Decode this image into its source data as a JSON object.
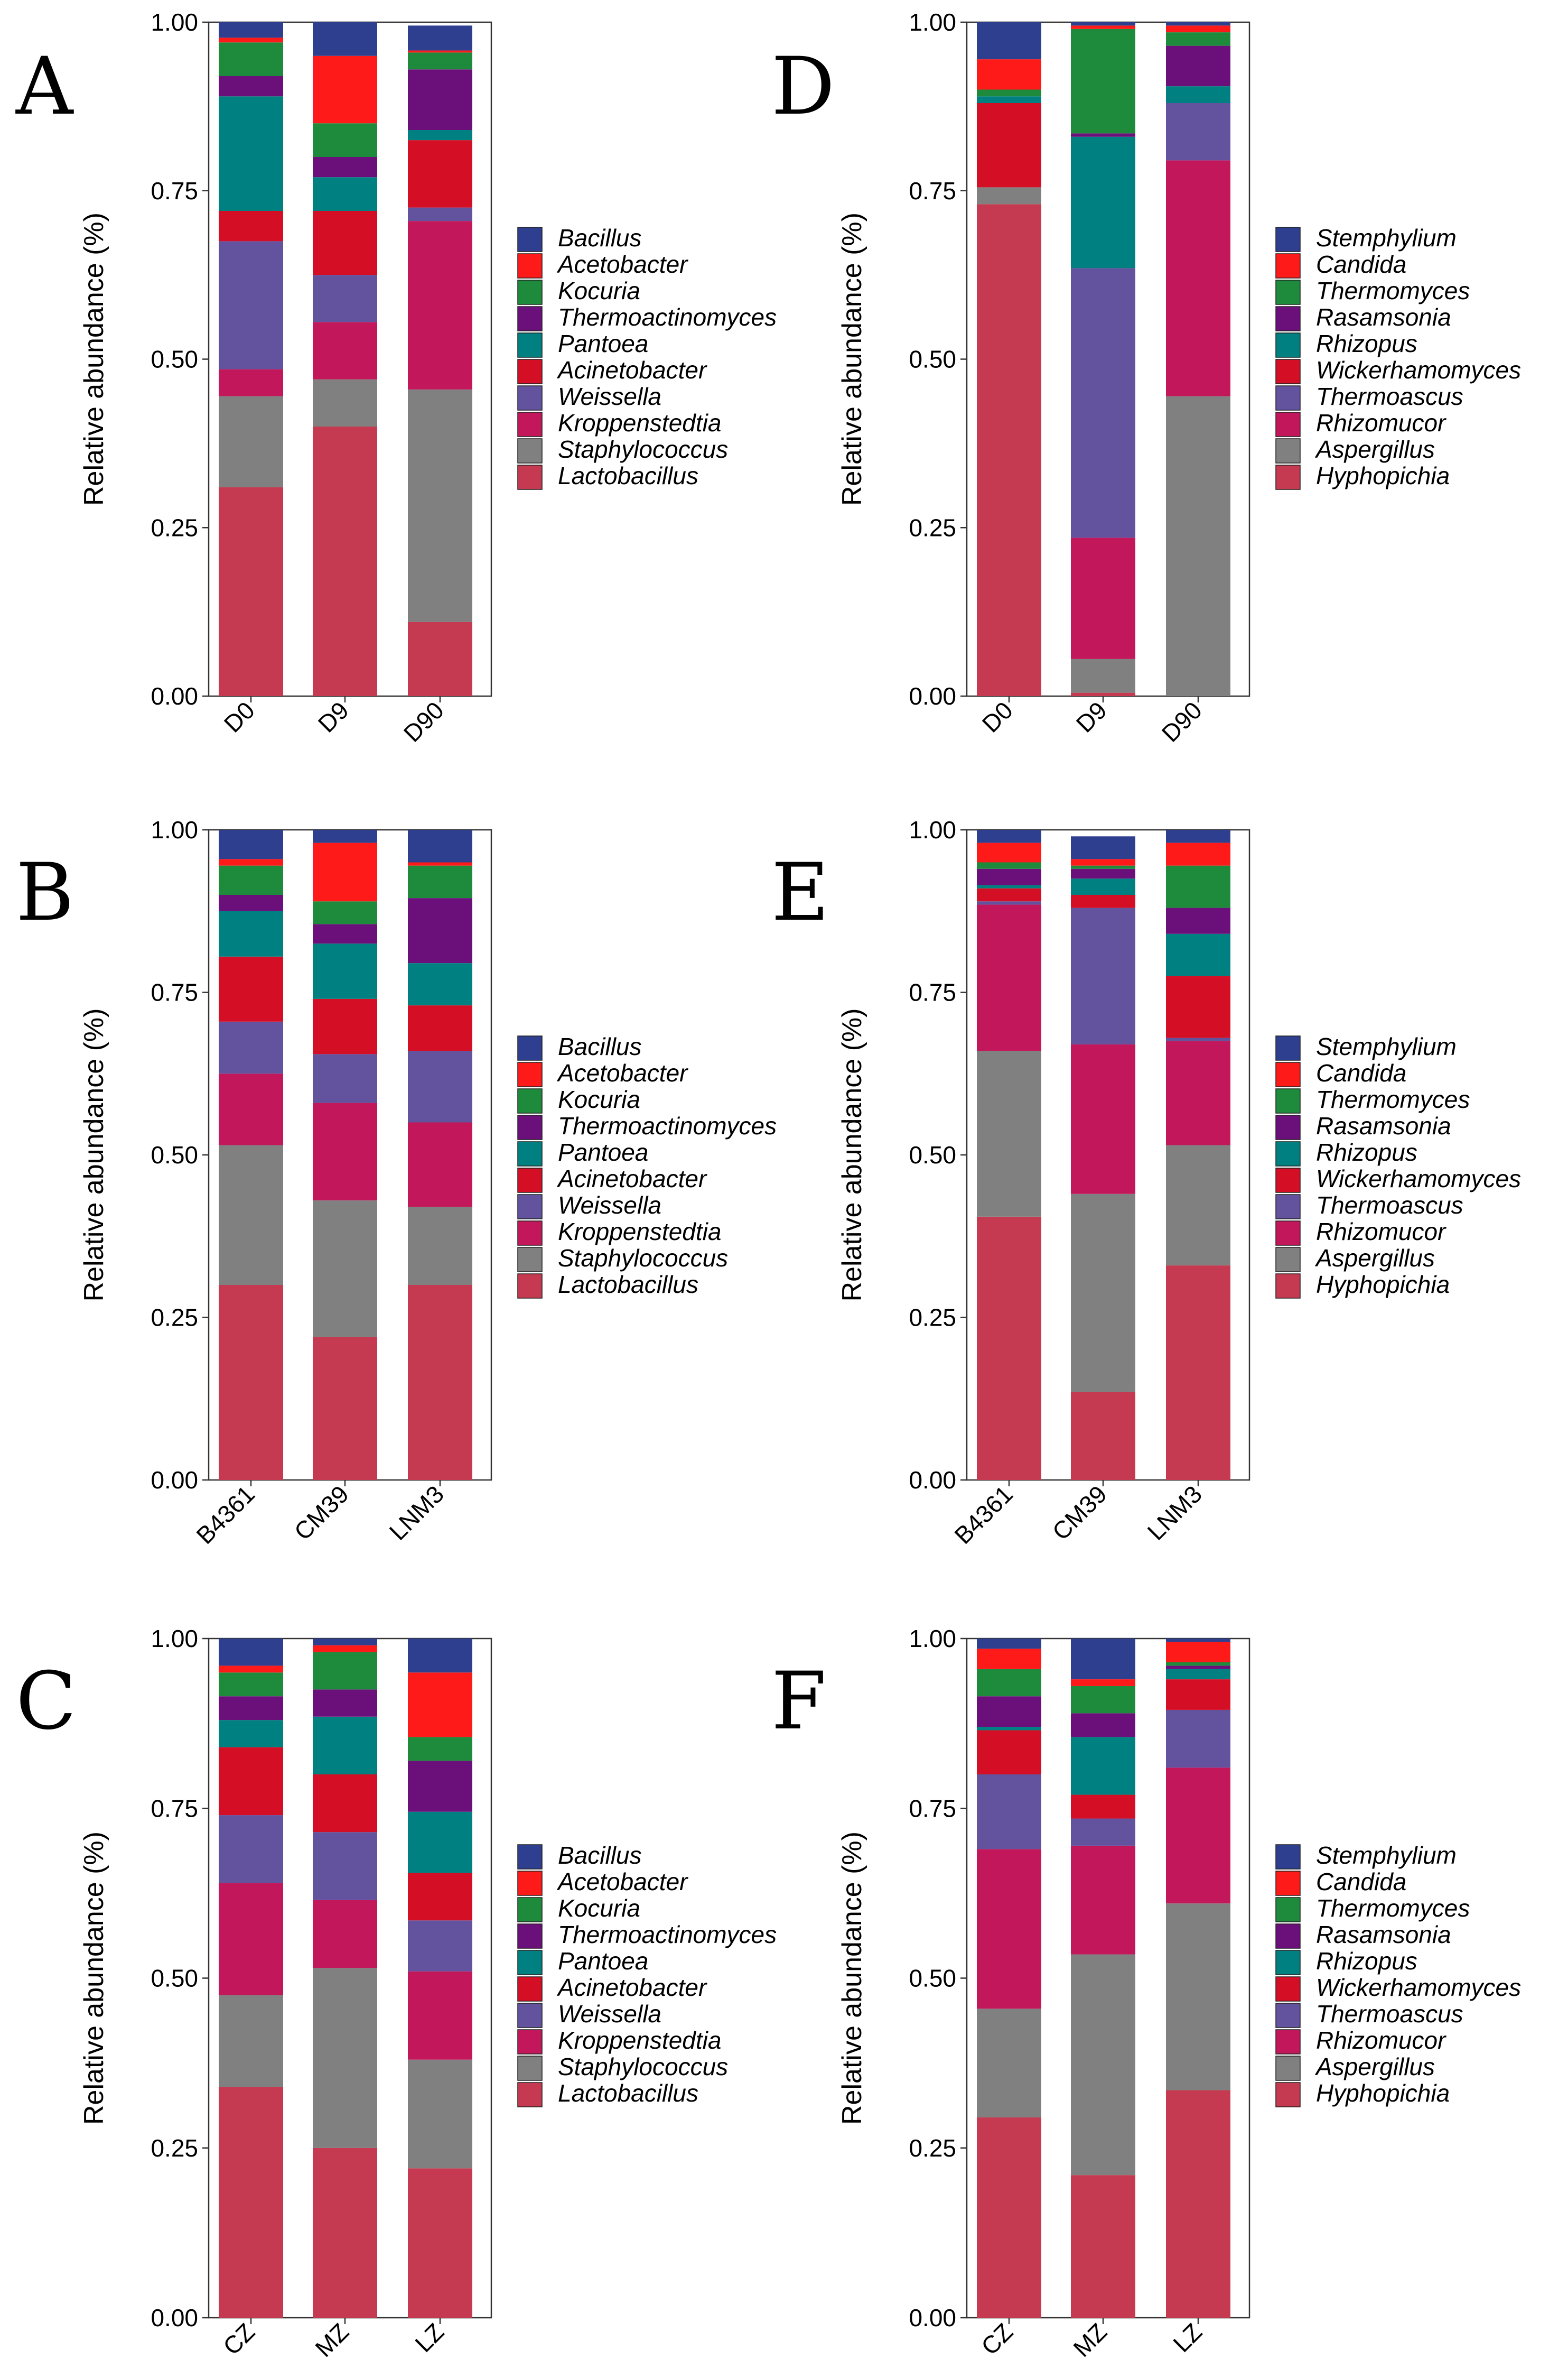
{
  "bacteria_legend": [
    "Bacillus",
    "Acetobacter",
    "Kocuria",
    "Thermoactinomyces",
    "Pantoea",
    "Acinetobacter",
    "Weissella",
    "Kroppenstedtia",
    "Staphylococcus",
    "Lactobacillus"
  ],
  "fungi_legend": [
    "Stemphylium",
    "Candida",
    "Thermomyces",
    "Rasamsonia",
    "Rhizopus",
    "Wickerhamomyces",
    "Thermoascus",
    "Rhizomucor",
    "Aspergillus",
    "Hyphopichia"
  ],
  "colors": [
    "#2E3F8F",
    "#FF1A1A",
    "#1E8A3C",
    "#6B0F7A",
    "#008080",
    "#D40F25",
    "#63529E",
    "#C2185B",
    "#808080",
    "#C53A50"
  ],
  "y_axis_title": "Relative abundance (%)",
  "y_ticks": [
    "0.00",
    "0.25",
    "0.50",
    "0.75",
    "1.00"
  ],
  "chart_data": [
    {
      "type": "bar",
      "stacked": true,
      "panel": "A",
      "categories": [
        "D0",
        "D9",
        "D90"
      ],
      "ylabel": "Relative abundance (%)",
      "ylim": [
        0,
        1
      ],
      "series": [
        {
          "name": "Lactobacillus",
          "values": [
            0.31,
            0.4,
            0.11
          ]
        },
        {
          "name": "Staphylococcus",
          "values": [
            0.135,
            0.07,
            0.345
          ]
        },
        {
          "name": "Kroppenstedtia",
          "values": [
            0.04,
            0.085,
            0.25
          ]
        },
        {
          "name": "Weissella",
          "values": [
            0.19,
            0.07,
            0.02
          ]
        },
        {
          "name": "Acinetobacter",
          "values": [
            0.045,
            0.095,
            0.1
          ]
        },
        {
          "name": "Pantoea",
          "values": [
            0.17,
            0.05,
            0.015
          ]
        },
        {
          "name": "Thermoactinomyces",
          "values": [
            0.03,
            0.03,
            0.09
          ]
        },
        {
          "name": "Kocuria",
          "values": [
            0.05,
            0.05,
            0.025
          ]
        },
        {
          "name": "Acetobacter",
          "values": [
            0.007,
            0.1,
            0.003
          ]
        },
        {
          "name": "Bacillus",
          "values": [
            0.023,
            0.05,
            0.037
          ]
        }
      ]
    },
    {
      "type": "bar",
      "stacked": true,
      "panel": "B",
      "categories": [
        "B4361",
        "CM39",
        "LNM3"
      ],
      "ylabel": "Relative abundance (%)",
      "ylim": [
        0,
        1
      ],
      "series": [
        {
          "name": "Lactobacillus",
          "values": [
            0.3,
            0.22,
            0.3
          ]
        },
        {
          "name": "Staphylococcus",
          "values": [
            0.215,
            0.21,
            0.12
          ]
        },
        {
          "name": "Kroppenstedtia",
          "values": [
            0.11,
            0.15,
            0.13
          ]
        },
        {
          "name": "Weissella",
          "values": [
            0.08,
            0.075,
            0.11
          ]
        },
        {
          "name": "Acinetobacter",
          "values": [
            0.1,
            0.085,
            0.07
          ]
        },
        {
          "name": "Pantoea",
          "values": [
            0.07,
            0.085,
            0.065
          ]
        },
        {
          "name": "Thermoactinomyces",
          "values": [
            0.025,
            0.03,
            0.1
          ]
        },
        {
          "name": "Kocuria",
          "values": [
            0.045,
            0.035,
            0.05
          ]
        },
        {
          "name": "Acetobacter",
          "values": [
            0.01,
            0.09,
            0.005
          ]
        },
        {
          "name": "Bacillus",
          "values": [
            0.045,
            0.02,
            0.05
          ]
        }
      ]
    },
    {
      "type": "bar",
      "stacked": true,
      "panel": "C",
      "categories": [
        "CZ",
        "MZ",
        "LZ"
      ],
      "ylabel": "Relative abundance (%)",
      "ylim": [
        0,
        1
      ],
      "series": [
        {
          "name": "Lactobacillus",
          "values": [
            0.34,
            0.25,
            0.22
          ]
        },
        {
          "name": "Staphylococcus",
          "values": [
            0.135,
            0.265,
            0.16
          ]
        },
        {
          "name": "Kroppenstedtia",
          "values": [
            0.165,
            0.1,
            0.13
          ]
        },
        {
          "name": "Weissella",
          "values": [
            0.1,
            0.1,
            0.075
          ]
        },
        {
          "name": "Acinetobacter",
          "values": [
            0.1,
            0.085,
            0.07
          ]
        },
        {
          "name": "Pantoea",
          "values": [
            0.04,
            0.085,
            0.09
          ]
        },
        {
          "name": "Thermoactinomyces",
          "values": [
            0.035,
            0.04,
            0.075
          ]
        },
        {
          "name": "Kocuria",
          "values": [
            0.035,
            0.055,
            0.035
          ]
        },
        {
          "name": "Acetobacter",
          "values": [
            0.01,
            0.01,
            0.095
          ]
        },
        {
          "name": "Bacillus",
          "values": [
            0.04,
            0.01,
            0.05
          ]
        }
      ]
    },
    {
      "type": "bar",
      "stacked": true,
      "panel": "D",
      "categories": [
        "D0",
        "D9",
        "D90"
      ],
      "ylabel": "Relative abundance (%)",
      "ylim": [
        0,
        1
      ],
      "series": [
        {
          "name": "Hyphopichia",
          "values": [
            0.73,
            0.005,
            0.0
          ]
        },
        {
          "name": "Aspergillus",
          "values": [
            0.025,
            0.05,
            0.445
          ]
        },
        {
          "name": "Rhizomucor",
          "values": [
            0.0,
            0.18,
            0.35
          ]
        },
        {
          "name": "Thermoascus",
          "values": [
            0.0,
            0.4,
            0.085
          ]
        },
        {
          "name": "Wickerhamomyces",
          "values": [
            0.125,
            0.0,
            0.0
          ]
        },
        {
          "name": "Rhizopus",
          "values": [
            0.01,
            0.195,
            0.025
          ]
        },
        {
          "name": "Rasamsonia",
          "values": [
            0.0,
            0.005,
            0.06
          ]
        },
        {
          "name": "Thermomyces",
          "values": [
            0.01,
            0.155,
            0.02
          ]
        },
        {
          "name": "Candida",
          "values": [
            0.045,
            0.005,
            0.01
          ]
        },
        {
          "name": "Stemphylium",
          "values": [
            0.055,
            0.005,
            0.005
          ]
        }
      ]
    },
    {
      "type": "bar",
      "stacked": true,
      "panel": "E",
      "categories": [
        "B4361",
        "CM39",
        "LNM3"
      ],
      "ylabel": "Relative abundance (%)",
      "ylim": [
        0,
        1
      ],
      "series": [
        {
          "name": "Hyphopichia",
          "values": [
            0.405,
            0.135,
            0.33
          ]
        },
        {
          "name": "Aspergillus",
          "values": [
            0.255,
            0.305,
            0.185
          ]
        },
        {
          "name": "Rhizomucor",
          "values": [
            0.225,
            0.23,
            0.16
          ]
        },
        {
          "name": "Thermoascus",
          "values": [
            0.005,
            0.21,
            0.005
          ]
        },
        {
          "name": "Wickerhamomyces",
          "values": [
            0.02,
            0.02,
            0.095
          ]
        },
        {
          "name": "Rhizopus",
          "values": [
            0.005,
            0.025,
            0.065
          ]
        },
        {
          "name": "Rasamsonia",
          "values": [
            0.025,
            0.015,
            0.04
          ]
        },
        {
          "name": "Thermomyces",
          "values": [
            0.01,
            0.005,
            0.065
          ]
        },
        {
          "name": "Candida",
          "values": [
            0.03,
            0.01,
            0.035
          ]
        },
        {
          "name": "Stemphylium",
          "values": [
            0.02,
            0.035,
            0.02
          ]
        }
      ]
    },
    {
      "type": "bar",
      "stacked": true,
      "panel": "F",
      "categories": [
        "CZ",
        "MZ",
        "LZ"
      ],
      "ylabel": "Relative abundance (%)",
      "ylim": [
        0,
        1
      ],
      "series": [
        {
          "name": "Hyphopichia",
          "values": [
            0.295,
            0.21,
            0.335
          ]
        },
        {
          "name": "Aspergillus",
          "values": [
            0.16,
            0.325,
            0.275
          ]
        },
        {
          "name": "Rhizomucor",
          "values": [
            0.235,
            0.16,
            0.2
          ]
        },
        {
          "name": "Thermoascus",
          "values": [
            0.11,
            0.04,
            0.085
          ]
        },
        {
          "name": "Wickerhamomyces",
          "values": [
            0.065,
            0.035,
            0.045
          ]
        },
        {
          "name": "Rhizopus",
          "values": [
            0.005,
            0.085,
            0.015
          ]
        },
        {
          "name": "Rasamsonia",
          "values": [
            0.045,
            0.035,
            0.005
          ]
        },
        {
          "name": "Thermomyces",
          "values": [
            0.04,
            0.04,
            0.005
          ]
        },
        {
          "name": "Candida",
          "values": [
            0.03,
            0.01,
            0.03
          ]
        },
        {
          "name": "Stemphylium",
          "values": [
            0.015,
            0.06,
            0.005
          ]
        }
      ]
    }
  ]
}
